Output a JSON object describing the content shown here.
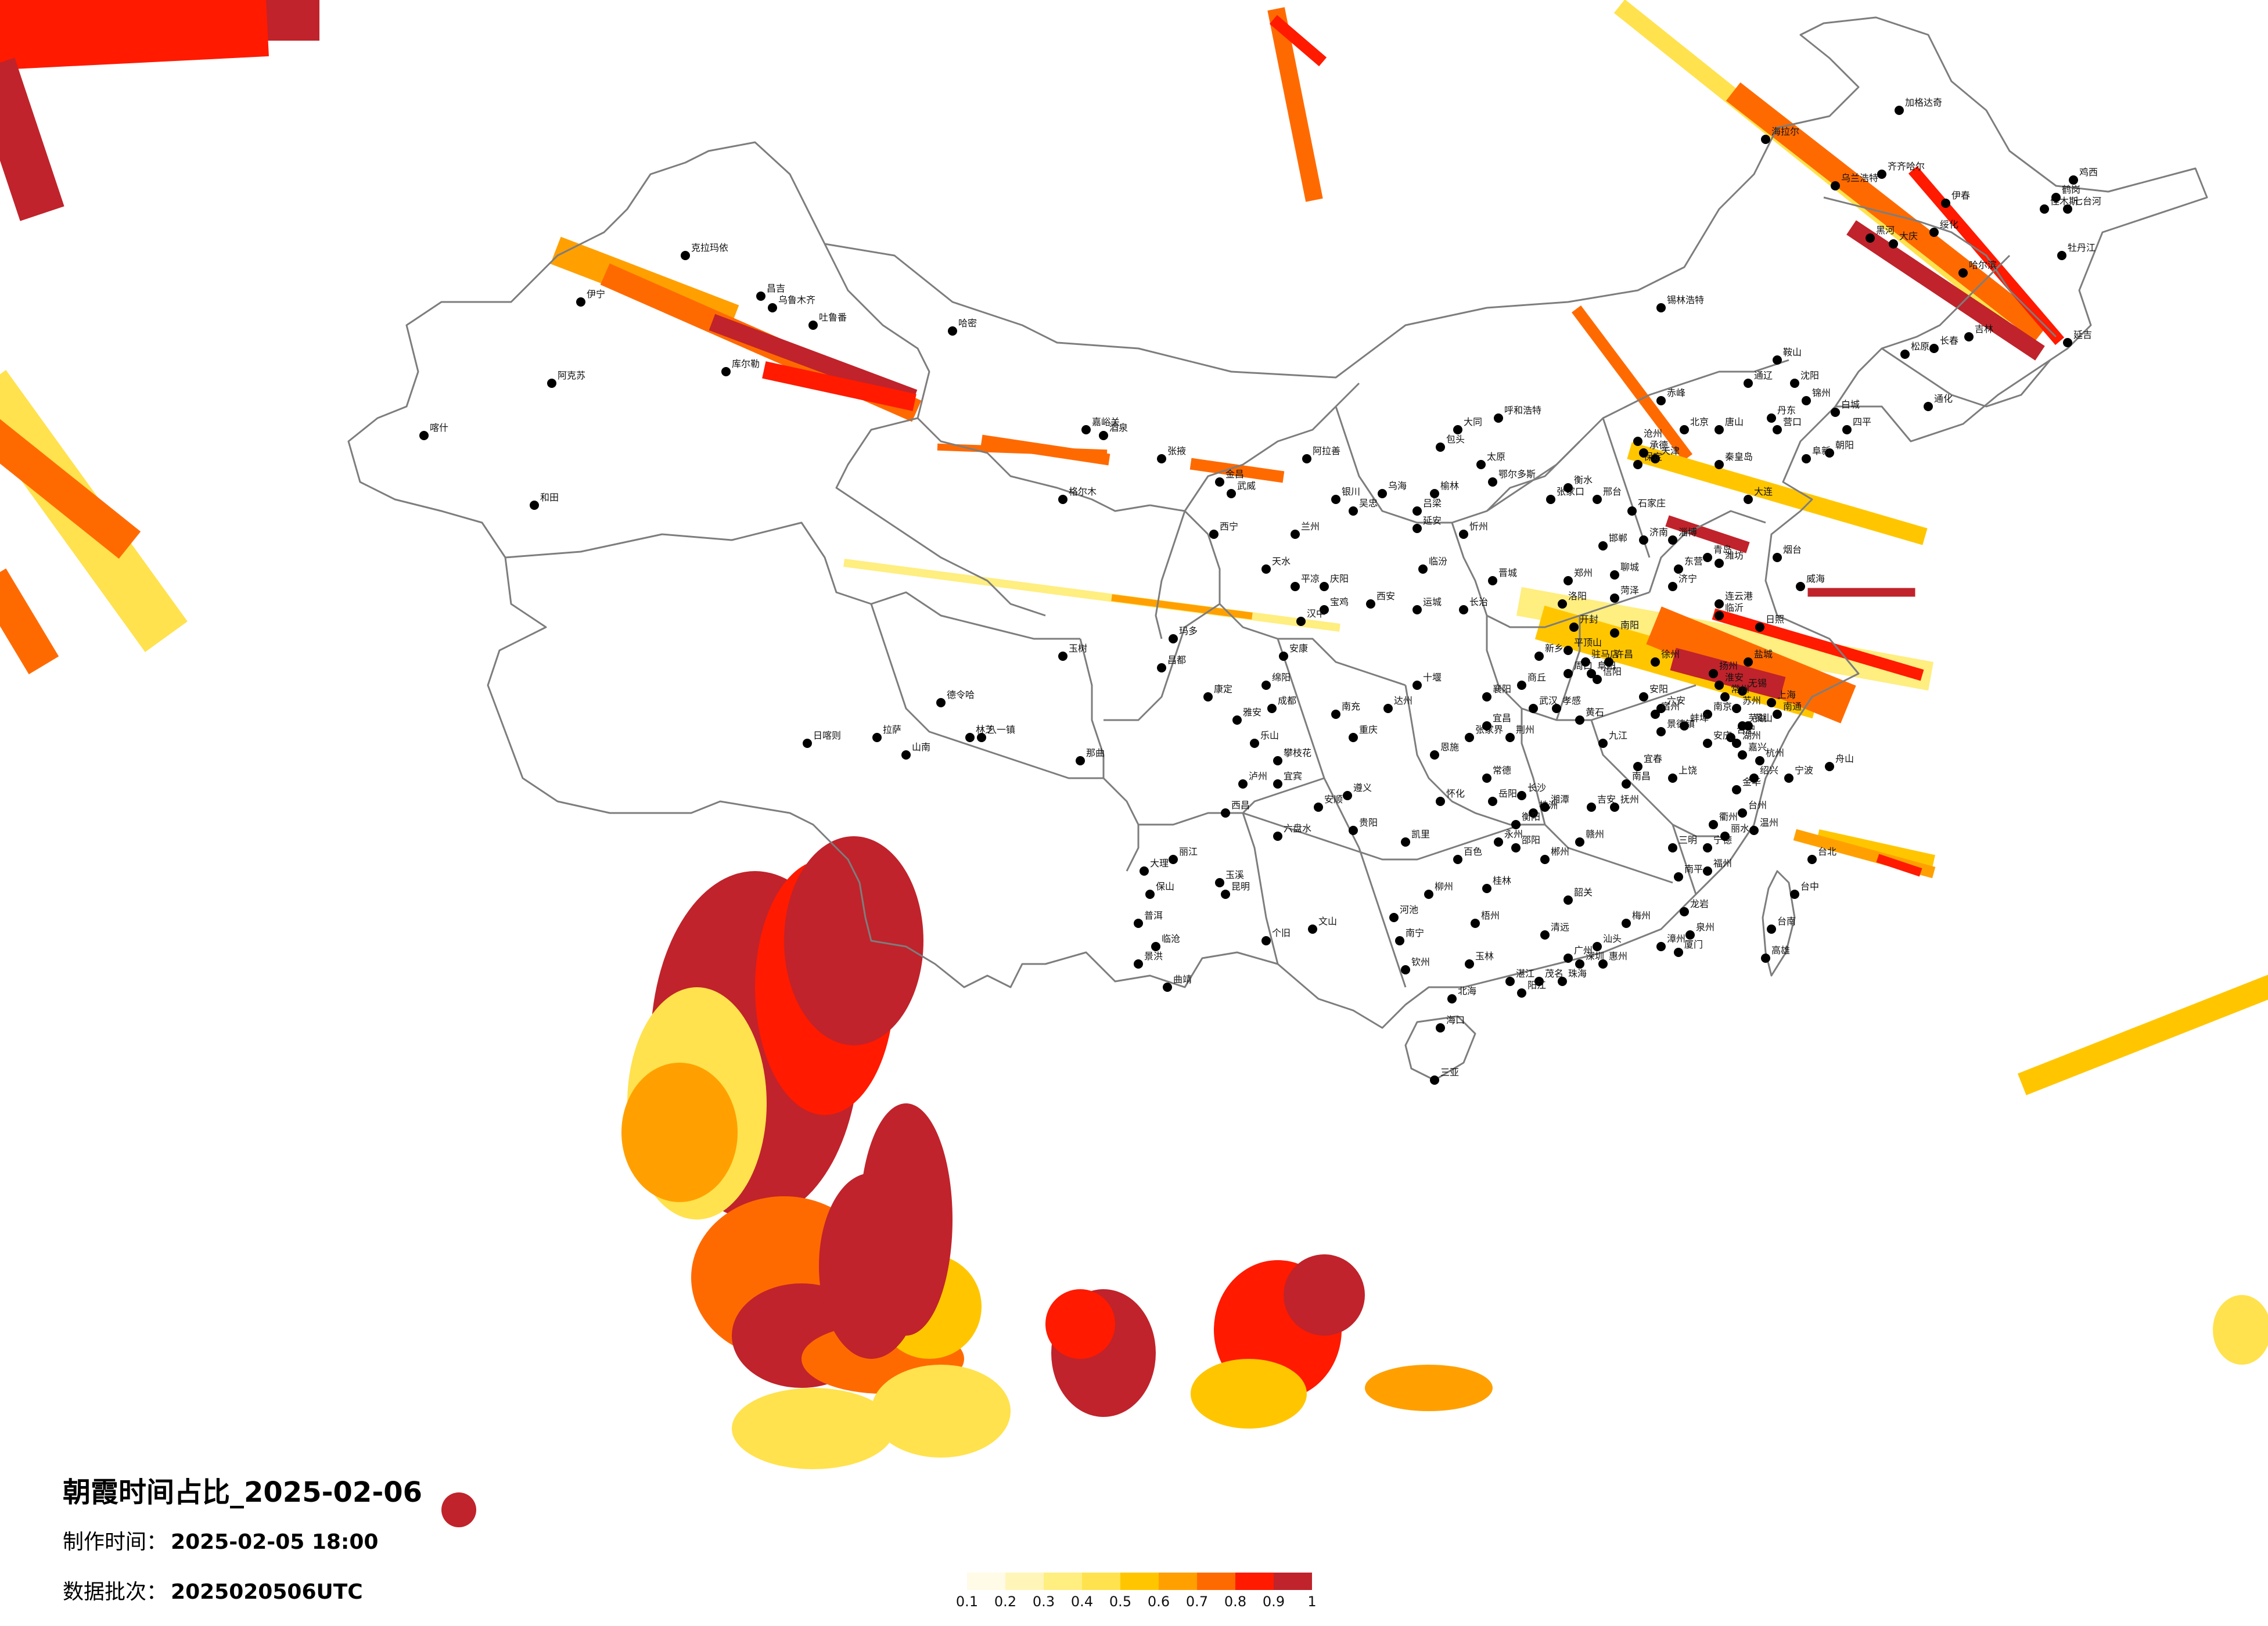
{
  "title": "朝霞时间占比_2025-02-06",
  "meta": {
    "made_label": "制作时间：",
    "made_value": "2025-02-05 18:00",
    "batch_label": "数据批次：",
    "batch_value": "2025020506UTC"
  },
  "legend": {
    "ticks": [
      "0.1",
      "0.2",
      "0.3",
      "0.4",
      "0.5",
      "0.6",
      "0.7",
      "0.8",
      "0.9",
      "1"
    ],
    "colors": [
      "#fffbe6",
      "#fff5b8",
      "#ffee80",
      "#ffe24d",
      "#ffc600",
      "#ffa000",
      "#ff6a00",
      "#ff1a00",
      "#c0232b"
    ]
  },
  "colors": {
    "border": "#7d7d7d",
    "city_dot": "#000000",
    "background": "#ffffff"
  },
  "cities": [
    "克拉玛依",
    "昌吉",
    "乌鲁木齐",
    "吐鲁番",
    "哈密",
    "伊宁",
    "库尔勒",
    "阿克苏",
    "喀什",
    "和田",
    "嘉峪关",
    "酒泉",
    "张掖",
    "金昌",
    "武威",
    "西宁",
    "格尔木",
    "德令哈",
    "玛多",
    "玉树",
    "那曲",
    "日喀则",
    "拉萨",
    "林芝",
    "八一镇",
    "山南",
    "昌都",
    "阿拉善",
    "银川",
    "吴忠",
    "乌海",
    "包头",
    "呼和浩特",
    "鄂尔多斯",
    "榆林",
    "延安",
    "兰州",
    "天水",
    "平凉",
    "庆阳",
    "西安",
    "宝鸡",
    "汉中",
    "安康",
    "成都",
    "绵阳",
    "南充",
    "达州",
    "重庆",
    "雅安",
    "乐山",
    "宜宾",
    "泸州",
    "康定",
    "西昌",
    "攀枝花",
    "贵阳",
    "遵义",
    "安顺",
    "六盘水",
    "凯里",
    "昆明",
    "大理",
    "丽江",
    "保山",
    "临沧",
    "普洱",
    "景洪",
    "曲靖",
    "玉溪",
    "个旧",
    "文山",
    "南宁",
    "柳州",
    "桂林",
    "百色",
    "河池",
    "梧州",
    "玉林",
    "钦州",
    "北海",
    "海口",
    "三亚",
    "广州",
    "深圳",
    "珠海",
    "汕头",
    "湛江",
    "茂名",
    "阳江",
    "韶关",
    "梅州",
    "惠州",
    "清远",
    "福州",
    "厦门",
    "泉州",
    "漳州",
    "南平",
    "三明",
    "龙岩",
    "宁德",
    "台北",
    "台中",
    "台南",
    "高雄",
    "长沙",
    "株洲",
    "湘潭",
    "衡阳",
    "岳阳",
    "常德",
    "怀化",
    "郴州",
    "永州",
    "邵阳",
    "张家界",
    "武汉",
    "宜昌",
    "襄阳",
    "荆州",
    "十堰",
    "黄石",
    "孝感",
    "恩施",
    "南昌",
    "九江",
    "赣州",
    "吉安",
    "上饶",
    "景德镇",
    "抚州",
    "宜春",
    "杭州",
    "宁波",
    "温州",
    "金华",
    "台州",
    "丽水",
    "衢州",
    "绍兴",
    "湖州",
    "嘉兴",
    "舟山",
    "上海",
    "南京",
    "苏州",
    "无锡",
    "常州",
    "徐州",
    "连云港",
    "盐城",
    "扬州",
    "南通",
    "淮安",
    "合肥",
    "芜湖",
    "蚌埠",
    "安庆",
    "阜阳",
    "六安",
    "黄山",
    "宿州",
    "郑州",
    "洛阳",
    "开封",
    "南阳",
    "信阳",
    "周口",
    "商丘",
    "新乡",
    "安阳",
    "许昌",
    "驻马店",
    "平顶山",
    "济南",
    "青岛",
    "烟台",
    "潍坊",
    "临沂",
    "济宁",
    "淄博",
    "威海",
    "日照",
    "菏泽",
    "聊城",
    "东营",
    "北京",
    "天津",
    "石家庄",
    "唐山",
    "保定",
    "邯郸",
    "张家口",
    "承德",
    "秦皇岛",
    "沧州",
    "衡水",
    "邢台",
    "太原",
    "大同",
    "临汾",
    "运城",
    "长治",
    "晋城",
    "忻州",
    "吕梁",
    "沈阳",
    "大连",
    "鞍山",
    "锦州",
    "丹东",
    "营口",
    "朝阳",
    "阜新",
    "长春",
    "吉林",
    "延吉",
    "四平",
    "通化",
    "白城",
    "松原",
    "哈尔滨",
    "齐齐哈尔",
    "牡丹江",
    "佳木斯",
    "大庆",
    "黑河",
    "伊春",
    "鸡西",
    "七台河",
    "鹤岗",
    "绥化",
    "加格达奇",
    "锡林浩特",
    "赤峰",
    "通辽",
    "乌兰浩特",
    "海拉尔"
  ]
}
